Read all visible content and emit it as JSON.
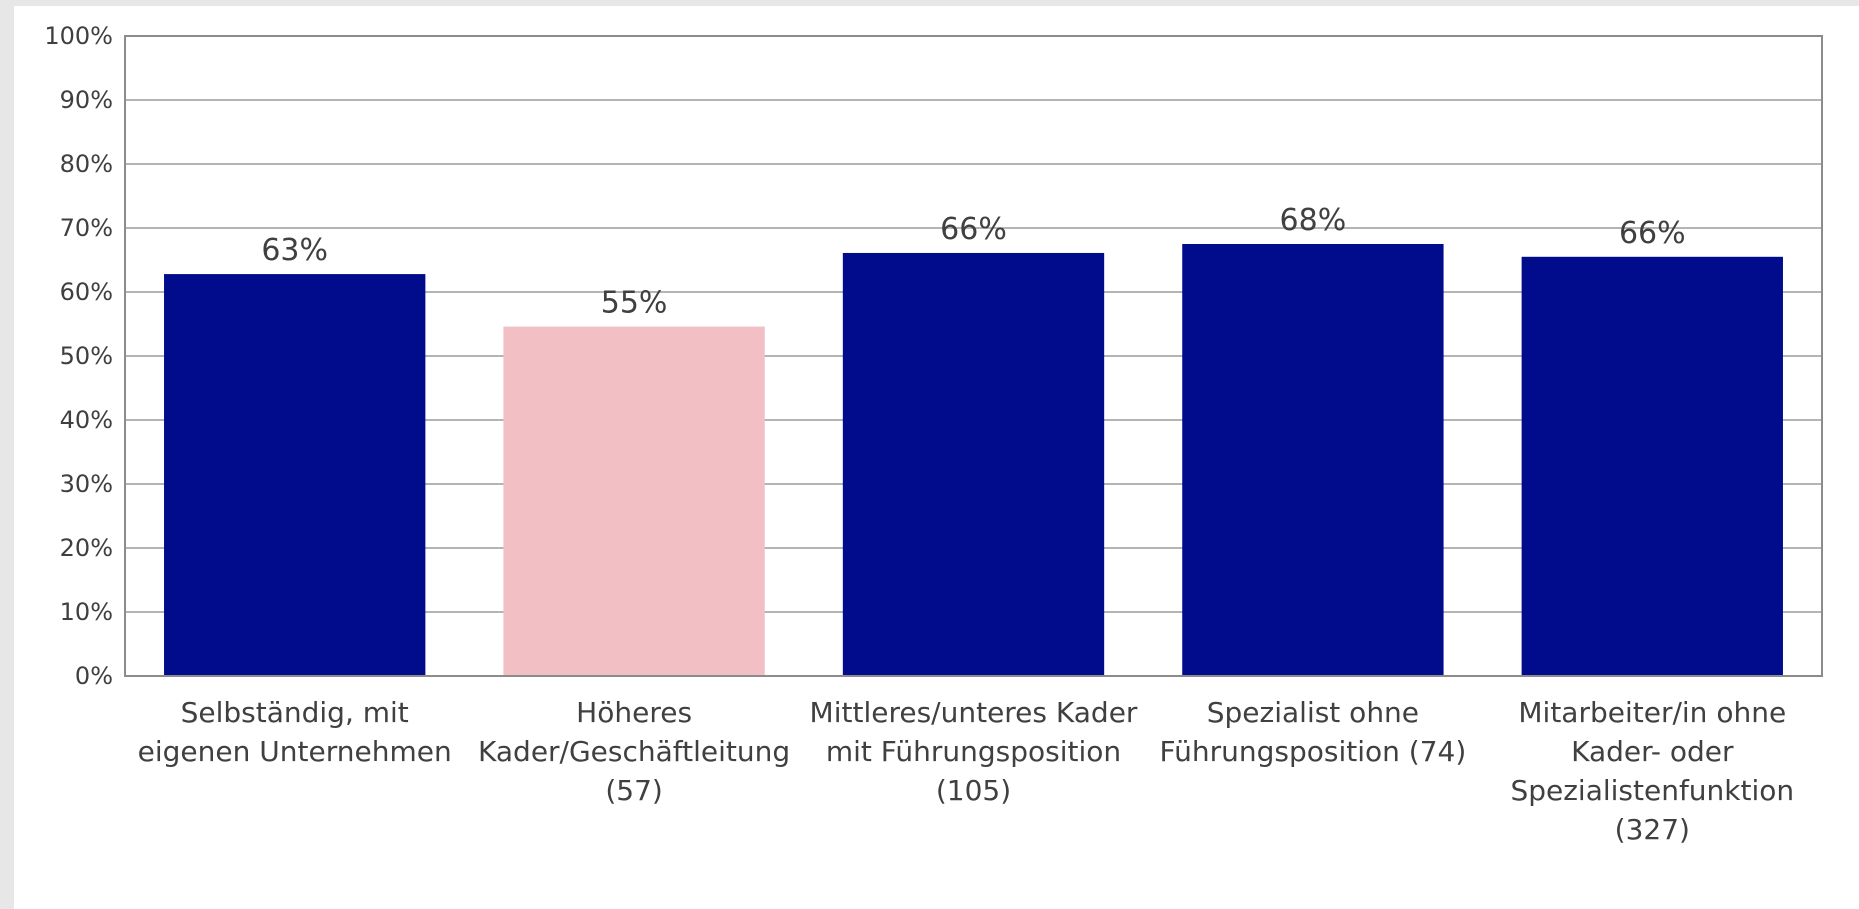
{
  "chart_data": {
    "type": "bar",
    "title": "",
    "xlabel": "",
    "ylabel": "",
    "ylim": [
      0,
      100
    ],
    "ytick_step": 10,
    "ytick_suffix": "%",
    "grid": true,
    "legend": "none",
    "categories": [
      [
        "Selbständig, mit",
        "eigenen Unternehmen"
      ],
      [
        "Höheres",
        "Kader/Geschäftleitung",
        "(57)"
      ],
      [
        "Mittleres/unteres Kader",
        "mit Führungsposition",
        "(105)"
      ],
      [
        "Spezialist ohne",
        "Führungsposition (74)"
      ],
      [
        "Mitarbeiter/in ohne",
        "Kader- oder",
        "Spezialistenfunktion",
        "(327)"
      ]
    ],
    "values": [
      62.8,
      54.6,
      66.1,
      67.5,
      65.5
    ],
    "data_labels": [
      "63%",
      "55%",
      "66%",
      "68%",
      "66%"
    ],
    "bar_colors": [
      "#000c8c",
      "#f1bfc4",
      "#000c8c",
      "#000c8c",
      "#000c8c"
    ],
    "colors": {
      "grid": "#9b9b9b",
      "axis": "#8c8c8c",
      "text": "#404040"
    }
  }
}
